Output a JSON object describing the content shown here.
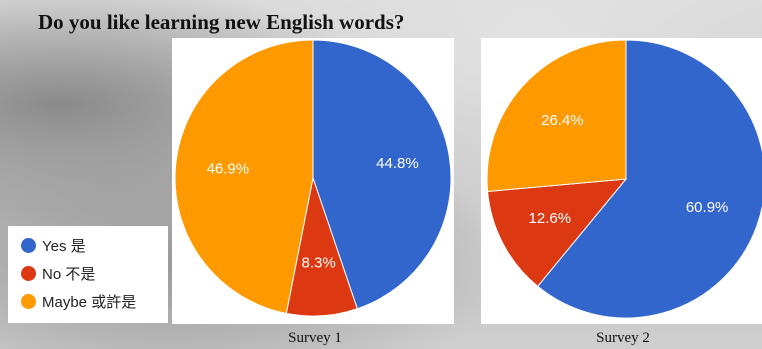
{
  "page": {
    "title": "Do you like learning new English words?"
  },
  "legend": {
    "items": [
      {
        "label": "Yes 是",
        "color": "#3366cc"
      },
      {
        "label": "No 不是",
        "color": "#dc3912"
      },
      {
        "label": "Maybe 或許是",
        "color": "#ff9900"
      }
    ]
  },
  "chart_data": [
    {
      "type": "pie",
      "title": "Survey 1",
      "categories": [
        "Yes 是",
        "No 不是",
        "Maybe 或許是"
      ],
      "values": [
        44.8,
        8.3,
        46.9
      ],
      "labels": [
        "44.8%",
        "8.3%",
        "46.9%"
      ],
      "colors": [
        "#3366cc",
        "#dc3912",
        "#ff9900"
      ],
      "start_angle_deg": 90,
      "direction": "clockwise"
    },
    {
      "type": "pie",
      "title": "Survey 2",
      "categories": [
        "Yes 是",
        "No 不是",
        "Maybe 或許是"
      ],
      "values": [
        60.9,
        12.6,
        26.4
      ],
      "labels": [
        "60.9%",
        "12.6%",
        "26.4%"
      ],
      "colors": [
        "#3366cc",
        "#dc3912",
        "#ff9900"
      ],
      "start_angle_deg": 90,
      "direction": "clockwise"
    }
  ]
}
